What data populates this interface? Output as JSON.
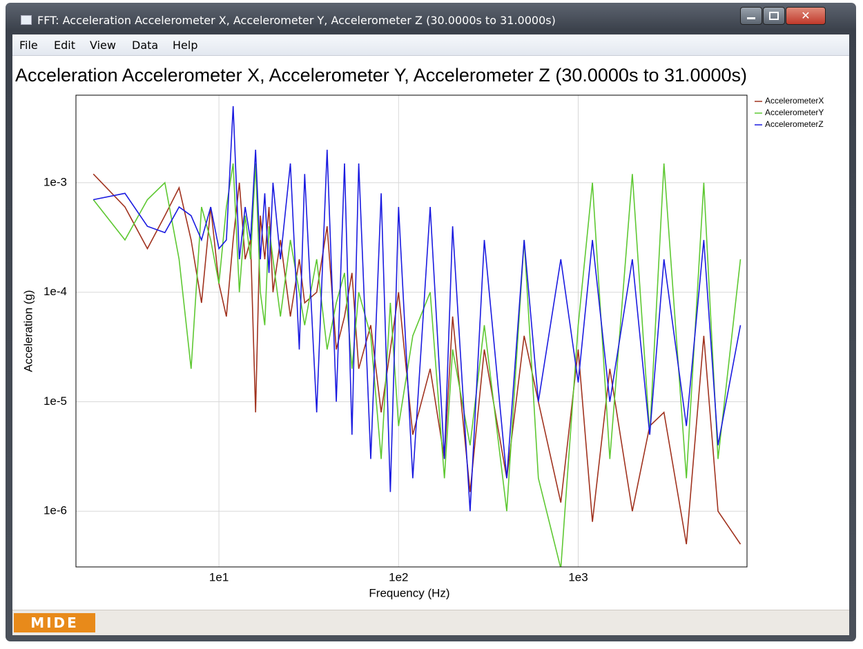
{
  "window": {
    "title": "FFT: Acceleration Accelerometer X, Accelerometer Y, Accelerometer Z (30.0000s to 31.0000s)"
  },
  "menu": [
    "File",
    "Edit",
    "View",
    "Data",
    "Help"
  ],
  "status": {
    "logo": "MIDE"
  },
  "chart_data": {
    "type": "line",
    "title": "Acceleration Accelerometer X, Accelerometer Y, Accelerometer Z (30.0000s to 31.0000s)",
    "x_label": "Frequency (Hz)",
    "y_label": "Acceleration (g)",
    "xscale": "log",
    "yscale": "log",
    "grid": true,
    "legend": "right",
    "xlim": [
      1.6,
      8700
    ],
    "ylim": [
      3.1e-07,
      0.0063
    ],
    "xticks": [
      {
        "value": 10,
        "label": "1e1"
      },
      {
        "value": 100,
        "label": "1e2"
      },
      {
        "value": 1000,
        "label": "1e3"
      }
    ],
    "yticks": [
      {
        "value": 1e-06,
        "label": "1e-6"
      },
      {
        "value": 1e-05,
        "label": "1e-5"
      },
      {
        "value": 0.0001,
        "label": "1e-4"
      },
      {
        "value": 0.001,
        "label": "1e-3"
      }
    ],
    "x": [
      2,
      3,
      4,
      5,
      6,
      7,
      8,
      9,
      10,
      11,
      12,
      13,
      14,
      15,
      16,
      17,
      18,
      19,
      20,
      22,
      25,
      28,
      30,
      35,
      40,
      45,
      50,
      55,
      60,
      70,
      80,
      90,
      100,
      120,
      150,
      180,
      200,
      250,
      300,
      400,
      500,
      600,
      800,
      1000,
      1200,
      1500,
      2000,
      2500,
      3000,
      4000,
      5000,
      6000,
      8000
    ],
    "series": [
      {
        "name": "AccelerometerX",
        "color": "#a0321e",
        "values": [
          0.0012,
          0.0006,
          0.00025,
          0.0005,
          0.0009,
          0.0003,
          8e-05,
          0.0006,
          0.00012,
          6e-05,
          0.0003,
          0.001,
          0.0002,
          0.0003,
          8e-06,
          0.0005,
          0.0002,
          0.0006,
          0.0001,
          0.0003,
          6e-05,
          0.0002,
          8e-05,
          0.0001,
          0.0004,
          3e-05,
          6e-05,
          0.00015,
          2e-05,
          5e-05,
          8e-06,
          3e-05,
          0.0001,
          5e-06,
          2e-05,
          3e-06,
          6e-05,
          1.5e-06,
          3e-05,
          2e-06,
          4e-05,
          1e-05,
          1.2e-06,
          3e-05,
          8e-07,
          2e-05,
          1e-06,
          6e-06,
          8e-06,
          5e-07,
          4e-05,
          1e-06,
          5e-07
        ]
      },
      {
        "name": "AccelerometerY",
        "color": "#5ec832",
        "values": [
          0.0007,
          0.0003,
          0.0007,
          0.001,
          0.0002,
          2e-05,
          0.0006,
          0.0003,
          0.00012,
          0.0006,
          0.0015,
          0.0001,
          0.0005,
          0.0002,
          0.0015,
          0.0001,
          5e-05,
          0.0004,
          0.0002,
          6e-05,
          0.0003,
          0.0001,
          5e-05,
          0.0002,
          3e-05,
          8e-05,
          0.00015,
          2e-05,
          0.0001,
          4e-05,
          3e-06,
          8e-05,
          6e-06,
          4e-05,
          0.0001,
          2e-06,
          3e-05,
          4e-06,
          5e-05,
          1e-06,
          0.0003,
          2e-06,
          3e-07,
          5e-05,
          0.001,
          3e-06,
          0.0012,
          5e-06,
          0.0015,
          2e-06,
          0.001,
          3e-06,
          0.0002
        ]
      },
      {
        "name": "AccelerometerZ",
        "color": "#1a1ae0",
        "values": [
          0.0007,
          0.0008,
          0.0004,
          0.00035,
          0.0006,
          0.0005,
          0.0003,
          0.0006,
          0.00025,
          0.0003,
          0.005,
          0.0002,
          0.0006,
          0.0003,
          0.002,
          0.0002,
          0.0008,
          0.00015,
          0.001,
          0.0002,
          0.0015,
          3e-05,
          0.0012,
          8e-06,
          0.002,
          1e-05,
          0.0015,
          5e-06,
          0.0015,
          3e-06,
          0.0008,
          1.5e-06,
          0.0006,
          2e-06,
          0.0006,
          3e-06,
          0.0004,
          1e-06,
          0.0003,
          2e-06,
          0.0003,
          1e-05,
          0.0002,
          1.5e-05,
          0.0003,
          1e-05,
          0.0002,
          5e-06,
          0.0002,
          6e-06,
          0.0003,
          4e-06,
          5e-05
        ]
      }
    ]
  }
}
